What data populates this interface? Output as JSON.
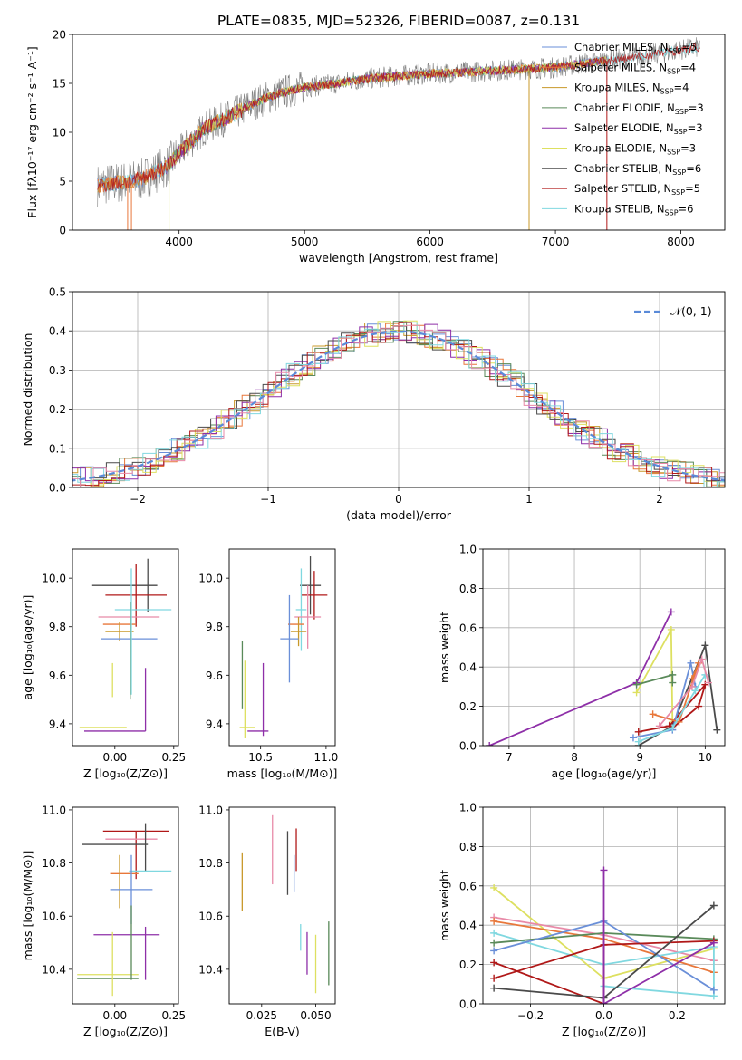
{
  "figure_title": "PLATE=0835, MJD=52326, FIBERID=0087, z=0.131",
  "colors": {
    "Chabrier MILES": "#6a8fd8",
    "Salpeter MILES": "#e8773a",
    "Kroupa MILES": "#c8982a",
    "Chabrier ELODIE": "#5a8a5a",
    "Salpeter ELODIE": "#8e2fa8",
    "Kroupa ELODIE": "#dde060",
    "Chabrier STELIB": "#4a4a4a",
    "Salpeter STELIB": "#b01818",
    "Kroupa STELIB": "#80d8e0",
    "pink": "#e88aa8",
    "normal": "#5a8ad8"
  },
  "legend_entries": [
    {
      "label": "Chabrier MILES, N",
      "sub": "SSP",
      "tail": "=5"
    },
    {
      "label": "Salpeter MILES, N",
      "sub": "SSP",
      "tail": "=4"
    },
    {
      "label": "Kroupa MILES, N",
      "sub": "SSP",
      "tail": "=4"
    },
    {
      "label": "Chabrier ELODIE, N",
      "sub": "SSP",
      "tail": "=3"
    },
    {
      "label": "Salpeter ELODIE, N",
      "sub": "SSP",
      "tail": "=3"
    },
    {
      "label": "Kroupa ELODIE, N",
      "sub": "SSP",
      "tail": "=3"
    },
    {
      "label": "Chabrier STELIB, N",
      "sub": "SSP",
      "tail": "=6"
    },
    {
      "label": "Salpeter STELIB, N",
      "sub": "SSP",
      "tail": "=5"
    },
    {
      "label": "Kroupa STELIB, N",
      "sub": "SSP",
      "tail": "=6"
    }
  ],
  "chart_data": [
    {
      "id": "spectrum",
      "type": "line",
      "xlabel": "wavelength [Angstrom, rest frame]",
      "ylabel": "Flux [fλ10⁻¹⁷ erg cm⁻² s⁻¹ A⁻¹]",
      "xlim": [
        3150,
        8350
      ],
      "ylim": [
        0,
        20
      ],
      "xticks": [
        4000,
        5000,
        6000,
        7000,
        8000
      ],
      "yticks": [
        0,
        5,
        10,
        15,
        20
      ],
      "continuum": [
        [
          3350,
          4.6
        ],
        [
          3500,
          4.8
        ],
        [
          3700,
          5.2
        ],
        [
          3900,
          6.5
        ],
        [
          4050,
          8.5
        ],
        [
          4200,
          10.4
        ],
        [
          4400,
          11.6
        ],
        [
          4600,
          13
        ],
        [
          4800,
          14
        ],
        [
          5000,
          14.6
        ],
        [
          5200,
          14.9
        ],
        [
          5400,
          15.3
        ],
        [
          5600,
          15.6
        ],
        [
          5800,
          15.8
        ],
        [
          6000,
          16
        ],
        [
          6200,
          16.1
        ],
        [
          6500,
          16.3
        ],
        [
          6800,
          16.5
        ],
        [
          7000,
          16.6
        ],
        [
          7200,
          17
        ],
        [
          7400,
          17.3
        ],
        [
          7600,
          17.6
        ],
        [
          7900,
          18.2
        ],
        [
          8150,
          18.7
        ]
      ],
      "drops": [
        [
          3590,
          0
        ],
        [
          3620,
          0
        ],
        [
          3920,
          0
        ],
        [
          6790,
          0
        ],
        [
          7410,
          0
        ]
      ]
    },
    {
      "id": "residuals",
      "type": "step",
      "xlabel": "(data-model)/error",
      "ylabel": "Normed distribution",
      "xlim": [
        -2.5,
        2.5
      ],
      "ylim": [
        0,
        0.5
      ],
      "xticks": [
        -2,
        -1,
        0,
        1,
        2
      ],
      "yticks": [
        0.0,
        0.1,
        0.2,
        0.3,
        0.4,
        0.5
      ],
      "legend_label": "𝒩(0, 1)"
    },
    {
      "id": "age_vs_Z",
      "type": "scatter",
      "xlabel": "Z [log₁₀(Z/Z⊙)]",
      "ylabel": "age  [log₁₀(age/yr)]",
      "xlim": [
        -0.18,
        0.27
      ],
      "ylim": [
        9.31,
        10.12
      ],
      "xticks": [
        0.0,
        0.25
      ],
      "xticklabels": [
        "0.00",
        "0.25"
      ],
      "yticks": [
        9.4,
        9.6,
        9.8,
        10.0
      ],
      "points": [
        {
          "s": "Chabrier STELIB",
          "x": 0.04,
          "xe": 0.14,
          "y": 9.97,
          "ye": 0.0
        },
        {
          "s": "Chabrier STELIB",
          "x": 0.14,
          "xe": 0.0,
          "y": 9.97,
          "ye": 0.11
        },
        {
          "s": "Salpeter STELIB",
          "x": 0.09,
          "xe": 0.13,
          "y": 9.93,
          "ye": 0.13
        },
        {
          "s": "Kroupa STELIB",
          "x": 0.12,
          "xe": 0.12,
          "y": 9.87,
          "ye": 0.0
        },
        {
          "s": "pink",
          "x": 0.06,
          "xe": 0.13,
          "y": 9.84,
          "ye": 0.0
        },
        {
          "s": "Salpeter MILES",
          "x": 0.02,
          "xe": 0.07,
          "y": 9.81,
          "ye": 0.0
        },
        {
          "s": "Kroupa MILES",
          "x": 0.02,
          "xe": 0.06,
          "y": 9.78,
          "ye": 0.04
        },
        {
          "s": "Chabrier MILES",
          "x": 0.06,
          "xe": 0.12,
          "y": 9.75,
          "ye": 0.0
        },
        {
          "s": "Kroupa STELIB",
          "x": 0.07,
          "xe": 0.0,
          "y": 9.78,
          "ye": 0.26
        },
        {
          "s": "Chabrier ELODIE",
          "x": 0.065,
          "xe": 0.0,
          "y": 9.7,
          "ye": 0.2
        },
        {
          "s": "Kroupa ELODIE",
          "x": -0.01,
          "xe": 0.0,
          "y": 9.58,
          "ye": 0.07
        },
        {
          "s": "Salpeter ELODIE",
          "x": 0.0,
          "xe": 0.13,
          "y": 9.37,
          "ye": 0.0
        },
        {
          "s": "Salpeter ELODIE",
          "x": 0.13,
          "xe": 0.0,
          "y": 9.5,
          "ye": 0.13
        },
        {
          "s": "Kroupa ELODIE",
          "x": -0.05,
          "xe": 0.1,
          "y": 9.385,
          "ye": 0.0
        }
      ]
    },
    {
      "id": "age_vs_mass",
      "type": "scatter",
      "xlabel": "mass [log₁₀(M/M⊙)]",
      "ylabel": "",
      "xlim": [
        10.26,
        11.07
      ],
      "ylim": [
        9.31,
        10.12
      ],
      "xticks": [
        10.5,
        11.0
      ],
      "xticklabels": [
        "10.5",
        "11.0"
      ],
      "yticks": [
        9.4,
        9.6,
        9.8,
        10.0
      ],
      "points": [
        {
          "s": "Chabrier STELIB",
          "x": 10.88,
          "xe": 0.08,
          "y": 9.97,
          "ye": 0.12
        },
        {
          "s": "Salpeter STELIB",
          "x": 10.91,
          "xe": 0.1,
          "y": 9.93,
          "ye": 0.1
        },
        {
          "s": "Kroupa STELIB",
          "x": 10.81,
          "xe": 0.04,
          "y": 9.87,
          "ye": 0.17
        },
        {
          "s": "pink",
          "x": 10.86,
          "xe": 0.1,
          "y": 9.84,
          "ye": 0.13
        },
        {
          "s": "Salpeter MILES",
          "x": 10.77,
          "xe": 0.06,
          "y": 9.81,
          "ye": 0.0
        },
        {
          "s": "Kroupa MILES",
          "x": 10.79,
          "xe": 0.06,
          "y": 9.78,
          "ye": 0.06
        },
        {
          "s": "Chabrier MILES",
          "x": 10.72,
          "xe": 0.07,
          "y": 9.75,
          "ye": 0.18
        },
        {
          "s": "Chabrier ELODIE",
          "x": 10.36,
          "xe": 0.0,
          "y": 9.6,
          "ye": 0.14
        },
        {
          "s": "Kroupa ELODIE",
          "x": 10.38,
          "xe": 0.0,
          "y": 9.5,
          "ye": 0.16
        },
        {
          "s": "Salpeter ELODIE",
          "x": 10.52,
          "xe": 0.0,
          "y": 9.5,
          "ye": 0.15
        },
        {
          "s": "Salpeter ELODIE",
          "x": 10.48,
          "xe": 0.08,
          "y": 9.37,
          "ye": 0.0
        },
        {
          "s": "Kroupa ELODIE",
          "x": 10.4,
          "xe": 0.06,
          "y": 9.385,
          "ye": 0.0
        }
      ]
    },
    {
      "id": "massweight_vs_age",
      "type": "line",
      "xlabel": "age  [log₁₀(age/yr)]",
      "ylabel": "mass weight",
      "xlim": [
        6.6,
        10.3
      ],
      "ylim": [
        0,
        1
      ],
      "xticks": [
        7,
        8,
        9,
        10
      ],
      "yticks": [
        0.0,
        0.2,
        0.4,
        0.6,
        0.8,
        1.0
      ],
      "series": [
        {
          "s": "Salpeter ELODIE",
          "pts": [
            [
              6.7,
              0.0
            ],
            [
              8.95,
              0.32
            ],
            [
              9.48,
              0.68
            ]
          ]
        },
        {
          "s": "Kroupa ELODIE",
          "pts": [
            [
              8.95,
              0.27
            ],
            [
              9.48,
              0.59
            ],
            [
              9.5,
              0.12
            ]
          ]
        },
        {
          "s": "Chabrier ELODIE",
          "pts": [
            [
              8.95,
              0.31
            ],
            [
              9.5,
              0.36
            ],
            [
              9.5,
              0.32
            ]
          ]
        },
        {
          "s": "Chabrier STELIB",
          "pts": [
            [
              8.98,
              0.0
            ],
            [
              9.5,
              0.1
            ],
            [
              10.0,
              0.51
            ],
            [
              10.18,
              0.08
            ]
          ]
        },
        {
          "s": "Salpeter STELIB",
          "pts": [
            [
              8.98,
              0.07
            ],
            [
              9.45,
              0.1
            ],
            [
              10.0,
              0.31
            ],
            [
              9.9,
              0.2
            ],
            [
              9.5,
              0.09
            ]
          ]
        },
        {
          "s": "Chabrier MILES",
          "pts": [
            [
              8.9,
              0.04
            ],
            [
              9.5,
              0.08
            ],
            [
              9.78,
              0.42
            ],
            [
              9.85,
              0.3
            ]
          ]
        },
        {
          "s": "Salpeter MILES",
          "pts": [
            [
              9.2,
              0.16
            ],
            [
              9.6,
              0.12
            ],
            [
              9.9,
              0.42
            ],
            [
              9.8,
              0.34
            ]
          ]
        },
        {
          "s": "Kroupa STELIB",
          "pts": [
            [
              8.98,
              0.02
            ],
            [
              9.5,
              0.09
            ],
            [
              9.85,
              0.28
            ],
            [
              10.0,
              0.36
            ]
          ]
        },
        {
          "s": "pink",
          "pts": [
            [
              9.3,
              0.1
            ],
            [
              9.8,
              0.3
            ],
            [
              9.95,
              0.44
            ],
            [
              10.05,
              0.32
            ]
          ]
        }
      ]
    },
    {
      "id": "mass_vs_Z",
      "type": "scatter",
      "xlabel": "Z [log₁₀(Z/Z⊙)]",
      "ylabel": "mass [log₁₀(M/M⊙)]",
      "xlim": [
        -0.18,
        0.27
      ],
      "ylim": [
        10.27,
        11.01
      ],
      "xticks": [
        0.0,
        0.25
      ],
      "xticklabels": [
        "0.00",
        "0.25"
      ],
      "yticks": [
        10.4,
        10.6,
        10.8,
        11.0
      ],
      "points": [
        {
          "s": "Salpeter STELIB",
          "x": 0.09,
          "xe": 0.14,
          "y": 10.92,
          "ye": 0.0
        },
        {
          "s": "Salpeter STELIB",
          "x": 0.09,
          "xe": 0.0,
          "y": 10.83,
          "ye": 0.09
        },
        {
          "s": "pink",
          "x": 0.07,
          "xe": 0.11,
          "y": 10.89,
          "ye": 0.0
        },
        {
          "s": "Chabrier STELIB",
          "x": 0.0,
          "xe": 0.14,
          "y": 10.87,
          "ye": 0.0
        },
        {
          "s": "Chabrier STELIB",
          "x": 0.13,
          "xe": 0.0,
          "y": 10.86,
          "ye": 0.09
        },
        {
          "s": "Kroupa STELIB",
          "x": 0.15,
          "xe": 0.09,
          "y": 10.77,
          "ye": 0.0
        },
        {
          "s": "Salpeter MILES",
          "x": 0.04,
          "xe": 0.06,
          "y": 10.76,
          "ye": 0.0
        },
        {
          "s": "Kroupa MILES",
          "x": 0.02,
          "xe": 0.0,
          "y": 10.73,
          "ye": 0.1
        },
        {
          "s": "Chabrier MILES",
          "x": 0.07,
          "xe": 0.09,
          "y": 10.7,
          "ye": 0.13
        },
        {
          "s": "Salpeter ELODIE",
          "x": 0.05,
          "xe": 0.14,
          "y": 10.53,
          "ye": 0.0
        },
        {
          "s": "Salpeter ELODIE",
          "x": 0.13,
          "xe": 0.0,
          "y": 10.46,
          "ye": 0.1
        },
        {
          "s": "Kroupa ELODIE",
          "x": -0.03,
          "xe": 0.13,
          "y": 10.38,
          "ye": 0.0
        },
        {
          "s": "Chabrier ELODIE",
          "x": -0.03,
          "xe": 0.13,
          "y": 10.365,
          "ye": 0.0
        },
        {
          "s": "Chabrier ELODIE",
          "x": 0.07,
          "xe": 0.0,
          "y": 10.5,
          "ye": 0.14
        },
        {
          "s": "Kroupa ELODIE",
          "x": -0.01,
          "xe": 0.0,
          "y": 10.42,
          "ye": 0.12
        }
      ]
    },
    {
      "id": "mass_vs_EBV",
      "type": "scatter",
      "xlabel": "E(B-V)",
      "ylabel": "",
      "xlim": [
        0.01,
        0.059
      ],
      "ylim": [
        10.27,
        11.01
      ],
      "xticks": [
        0.025,
        0.05
      ],
      "xticklabels": [
        "0.025",
        "0.050"
      ],
      "yticks": [
        10.4,
        10.6,
        10.8,
        11.0
      ],
      "points": [
        {
          "s": "Kroupa MILES",
          "x": 0.016,
          "xe": 0.0,
          "y": 10.73,
          "ye": 0.11
        },
        {
          "s": "pink",
          "x": 0.03,
          "xe": 0.0,
          "y": 10.85,
          "ye": 0.13
        },
        {
          "s": "Chabrier STELIB",
          "x": 0.037,
          "xe": 0.0,
          "y": 10.8,
          "ye": 0.12
        },
        {
          "s": "Salpeter STELIB",
          "x": 0.041,
          "xe": 0.0,
          "y": 10.85,
          "ye": 0.08
        },
        {
          "s": "Chabrier MILES",
          "x": 0.04,
          "xe": 0.0,
          "y": 10.76,
          "ye": 0.07
        },
        {
          "s": "Salpeter ELODIE",
          "x": 0.046,
          "xe": 0.0,
          "y": 10.46,
          "ye": 0.08
        },
        {
          "s": "Kroupa ELODIE",
          "x": 0.05,
          "xe": 0.0,
          "y": 10.42,
          "ye": 0.11
        },
        {
          "s": "Chabrier ELODIE",
          "x": 0.056,
          "xe": 0.0,
          "y": 10.46,
          "ye": 0.12
        },
        {
          "s": "Kroupa STELIB",
          "x": 0.043,
          "xe": 0.0,
          "y": 10.52,
          "ye": 0.05
        }
      ]
    },
    {
      "id": "massweight_vs_Z",
      "type": "line",
      "xlabel": "Z [log₁₀(Z/Z⊙)]",
      "ylabel": "mass weight",
      "xlim": [
        -0.33,
        0.33
      ],
      "ylim": [
        0,
        1
      ],
      "xticks": [
        -0.2,
        0.0,
        0.2
      ],
      "xticklabels": [
        "−0.2",
        "0.0",
        "0.2"
      ],
      "yticks": [
        0.0,
        0.2,
        0.4,
        0.6,
        0.8,
        1.0
      ],
      "series": [
        {
          "s": "Kroupa ELODIE",
          "pts": [
            [
              -0.3,
              0.59
            ],
            [
              0.0,
              0.13
            ],
            [
              0.3,
              0.28
            ]
          ]
        },
        {
          "s": "pink",
          "pts": [
            [
              -0.3,
              0.44
            ],
            [
              0.0,
              0.35
            ],
            [
              0.3,
              0.22
            ]
          ]
        },
        {
          "s": "Salpeter MILES",
          "pts": [
            [
              -0.3,
              0.42
            ],
            [
              0.0,
              0.33
            ],
            [
              0.3,
              0.16
            ]
          ]
        },
        {
          "s": "Kroupa STELIB",
          "pts": [
            [
              -0.3,
              0.36
            ],
            [
              0.0,
              0.2
            ],
            [
              0.3,
              0.29
            ],
            [
              0.3,
              0.04
            ],
            [
              0.0,
              0.09
            ]
          ]
        },
        {
          "s": "Chabrier ELODIE",
          "pts": [
            [
              -0.3,
              0.31
            ],
            [
              0.0,
              0.36
            ],
            [
              0.3,
              0.33
            ]
          ]
        },
        {
          "s": "Chabrier MILES",
          "pts": [
            [
              -0.3,
              0.27
            ],
            [
              0.0,
              0.42
            ],
            [
              0.3,
              0.07
            ]
          ]
        },
        {
          "s": "Salpeter STELIB",
          "pts": [
            [
              -0.3,
              0.13
            ],
            [
              0.0,
              0.3
            ],
            [
              0.3,
              0.32
            ],
            [
              0.0,
              0.3
            ],
            [
              0.0,
              0.0
            ],
            [
              -0.3,
              0.21
            ]
          ]
        },
        {
          "s": "Chabrier STELIB",
          "pts": [
            [
              -0.3,
              0.08
            ],
            [
              0.0,
              0.03
            ],
            [
              0.3,
              0.5
            ]
          ]
        },
        {
          "s": "Salpeter ELODIE",
          "pts": [
            [
              0.0,
              0.68
            ],
            [
              0.0,
              0.0
            ],
            [
              0.3,
              0.31
            ]
          ]
        }
      ]
    }
  ]
}
